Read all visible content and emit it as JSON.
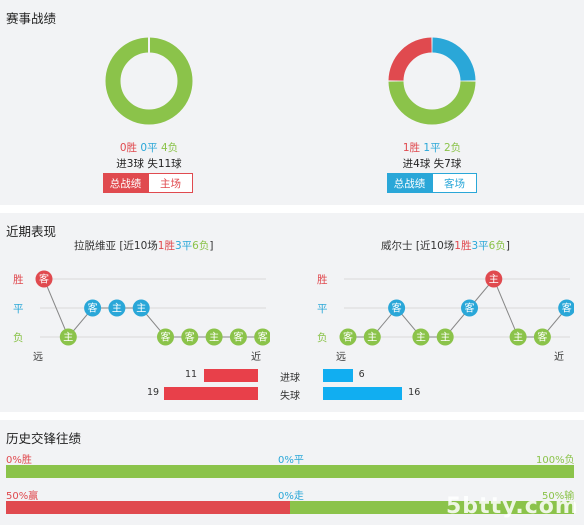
{
  "record": {
    "title": "赛事战绩",
    "left": {
      "win": "0胜",
      "draw": "0平",
      "loss": "4负",
      "goals": "进3球 失11球",
      "tab_active": "总战绩",
      "tab_other": "主场",
      "wins": 0,
      "draws": 0,
      "losses": 4
    },
    "right": {
      "win": "1胜",
      "draw": "1平",
      "loss": "2负",
      "goals": "进4球 失7球",
      "tab_active": "总战绩",
      "tab_other": "客场",
      "wins": 1,
      "draws": 1,
      "losses": 2
    }
  },
  "recent": {
    "title": "近期表现",
    "y_labels": [
      "胜",
      "平",
      "负"
    ],
    "far_label": "远",
    "near_label": "近",
    "left": {
      "team": "拉脱维亚",
      "prefix": " [近10场",
      "win": "1胜",
      "draw": "3平",
      "loss": "6负",
      "suffix": "]",
      "results": [
        "W",
        "L",
        "D",
        "D",
        "D",
        "L",
        "L",
        "L",
        "L",
        "L"
      ],
      "venues": [
        "客",
        "主",
        "客",
        "主",
        "主",
        "客",
        "客",
        "主",
        "客",
        "客"
      ]
    },
    "right": {
      "team": "威尔士",
      "prefix": " [近10场",
      "win": "1胜",
      "draw": "3平",
      "loss": "6负",
      "suffix": "]",
      "results": [
        "L",
        "L",
        "D",
        "L",
        "L",
        "D",
        "W",
        "L",
        "L",
        "D"
      ],
      "venues": [
        "客",
        "主",
        "客",
        "主",
        "主",
        "客",
        "主",
        "主",
        "客",
        "客"
      ]
    },
    "goals_for_label": "进球",
    "goals_against_label": "失球",
    "left_goals_for": "11",
    "left_goals_against": "19",
    "right_goals_for": "6",
    "right_goals_against": "16",
    "left_gf_value": 11,
    "left_ga_value": 19,
    "right_gf_value": 6,
    "right_ga_value": 16
  },
  "history": {
    "title": "历史交锋往绩",
    "row1": {
      "left": "0%胜",
      "mid": "0%平",
      "right": "100%负",
      "left_pct": 0,
      "mid_pct": 0,
      "right_pct": 100
    },
    "row2": {
      "left": "50%赢",
      "mid": "0%走",
      "right": "50%输",
      "left_pct": 50,
      "mid_pct": 0,
      "right_pct": 50
    }
  },
  "watermark": "5btty.com",
  "colors": {
    "win": "#e04a4f",
    "draw": "#2aa7d8",
    "loss": "#8bc34a",
    "panel": "#f2f3f5"
  }
}
